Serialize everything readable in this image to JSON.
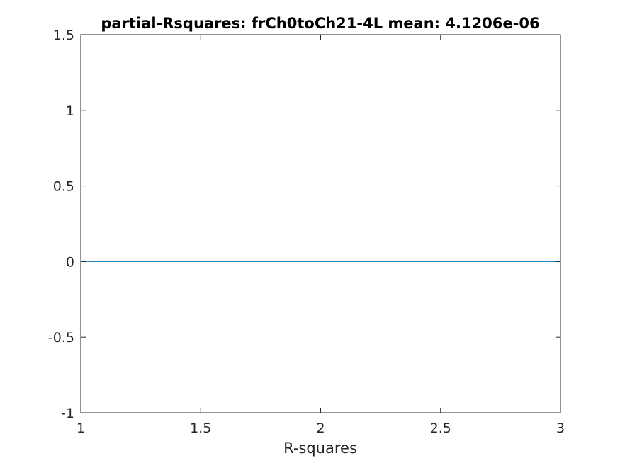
{
  "chart_data": {
    "type": "line",
    "title": "partial-Rsquares: frCh0toCh21-4L mean: 4.1206e-06",
    "xlabel": "R-squares",
    "ylabel": "",
    "xlim": [
      1,
      3
    ],
    "ylim": [
      -1,
      1.5
    ],
    "x_ticks": [
      1,
      1.5,
      2,
      2.5,
      3
    ],
    "x_tick_labels": [
      "1",
      "1.5",
      "2",
      "2.5",
      "3"
    ],
    "y_ticks": [
      -1,
      -0.5,
      0,
      0.5,
      1,
      1.5
    ],
    "y_tick_labels": [
      "-1",
      "-0.5",
      "0",
      "0.5",
      "1",
      "1.5"
    ],
    "grid": false,
    "series": [
      {
        "x": [
          1,
          2,
          3
        ],
        "values": [
          4.1206e-06,
          4.1206e-06,
          4.1206e-06
        ],
        "color": "#0072bd"
      }
    ]
  }
}
